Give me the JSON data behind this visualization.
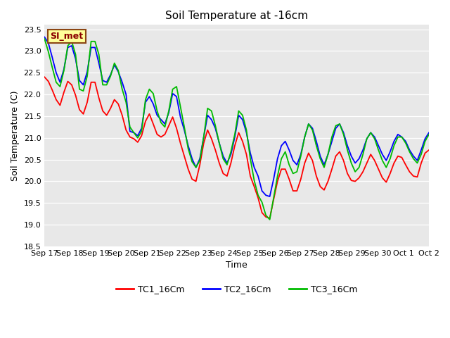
{
  "title": "Soil Temperature at -16cm",
  "xlabel": "Time",
  "ylabel": "Soil Temperature (C)",
  "ylim": [
    18.5,
    23.6
  ],
  "fig_bg_color": "#ffffff",
  "plot_bg_color": "#e8e8e8",
  "annotation_text": "SI_met",
  "annotation_bg": "#ffff99",
  "annotation_border": "#8B4513",
  "annotation_text_color": "#8B0000",
  "line_colors": [
    "#ff0000",
    "#0000ff",
    "#00bb00"
  ],
  "legend_labels": [
    "TC1_16Cm",
    "TC2_16Cm",
    "TC3_16Cm"
  ],
  "x_tick_labels": [
    "Sep 17",
    "Sep 18",
    "Sep 19",
    "Sep 20",
    "Sep 21",
    "Sep 22",
    "Sep 23",
    "Sep 24",
    "Sep 25",
    "Sep 26",
    "Sep 27",
    "Sep 28",
    "Sep 29",
    "Sep 30",
    "Oct 1",
    "Oct 2"
  ],
  "yticks": [
    18.5,
    19.0,
    19.5,
    20.0,
    20.5,
    21.0,
    21.5,
    22.0,
    22.5,
    23.0,
    23.5
  ],
  "tc1_values": [
    22.4,
    22.3,
    22.1,
    21.88,
    21.75,
    22.05,
    22.3,
    22.22,
    21.98,
    21.65,
    21.55,
    21.82,
    22.28,
    22.28,
    21.92,
    21.62,
    21.52,
    21.68,
    21.88,
    21.78,
    21.52,
    21.18,
    21.02,
    20.98,
    20.9,
    21.05,
    21.38,
    21.55,
    21.32,
    21.08,
    21.02,
    21.08,
    21.28,
    21.48,
    21.22,
    20.88,
    20.58,
    20.28,
    20.05,
    20.0,
    20.38,
    20.88,
    21.18,
    20.98,
    20.72,
    20.42,
    20.18,
    20.12,
    20.42,
    20.82,
    21.12,
    20.92,
    20.62,
    20.12,
    19.88,
    19.62,
    19.28,
    19.18,
    19.15,
    19.58,
    20.0,
    20.28,
    20.28,
    20.05,
    19.78,
    19.78,
    20.05,
    20.42,
    20.65,
    20.48,
    20.12,
    19.88,
    19.8,
    20.0,
    20.28,
    20.58,
    20.68,
    20.48,
    20.18,
    20.02,
    20.0,
    20.08,
    20.22,
    20.42,
    20.62,
    20.48,
    20.28,
    20.08,
    19.98,
    20.18,
    20.42,
    20.58,
    20.55,
    20.38,
    20.22,
    20.12,
    20.1,
    20.42,
    20.65,
    20.72
  ],
  "tc2_values": [
    23.32,
    23.18,
    22.85,
    22.5,
    22.28,
    22.58,
    23.08,
    23.12,
    22.82,
    22.32,
    22.22,
    22.52,
    23.08,
    23.08,
    22.72,
    22.32,
    22.28,
    22.45,
    22.68,
    22.52,
    22.28,
    22.0,
    21.15,
    21.12,
    21.05,
    21.22,
    21.82,
    21.95,
    21.78,
    21.52,
    21.42,
    21.32,
    21.58,
    22.02,
    21.95,
    21.48,
    21.18,
    20.82,
    20.52,
    20.32,
    20.52,
    21.02,
    21.52,
    21.42,
    21.22,
    20.88,
    20.58,
    20.42,
    20.62,
    21.02,
    21.52,
    21.42,
    21.12,
    20.65,
    20.32,
    20.12,
    19.78,
    19.68,
    19.65,
    20.05,
    20.52,
    20.82,
    20.92,
    20.72,
    20.48,
    20.38,
    20.62,
    21.02,
    21.32,
    21.22,
    20.92,
    20.58,
    20.38,
    20.62,
    20.92,
    21.22,
    21.32,
    21.12,
    20.82,
    20.58,
    20.42,
    20.52,
    20.72,
    20.98,
    21.12,
    21.02,
    20.82,
    20.62,
    20.48,
    20.68,
    20.92,
    21.08,
    21.02,
    20.92,
    20.72,
    20.58,
    20.48,
    20.72,
    20.98,
    21.12
  ],
  "tc3_values": [
    23.28,
    22.98,
    22.62,
    22.28,
    22.18,
    22.55,
    23.12,
    23.22,
    22.92,
    22.12,
    22.08,
    22.42,
    23.22,
    23.22,
    22.92,
    22.22,
    22.22,
    22.42,
    22.72,
    22.55,
    22.12,
    21.82,
    21.25,
    21.12,
    21.0,
    21.15,
    21.88,
    22.12,
    22.02,
    21.62,
    21.35,
    21.25,
    21.62,
    22.12,
    22.18,
    21.72,
    21.25,
    20.75,
    20.45,
    20.32,
    20.48,
    21.02,
    21.68,
    21.62,
    21.28,
    20.88,
    20.52,
    20.38,
    20.68,
    21.08,
    21.62,
    21.52,
    21.18,
    20.52,
    20.02,
    19.68,
    19.52,
    19.22,
    19.12,
    19.62,
    20.12,
    20.52,
    20.68,
    20.38,
    20.18,
    20.22,
    20.58,
    21.02,
    21.32,
    21.18,
    20.82,
    20.52,
    20.32,
    20.62,
    21.02,
    21.28,
    21.32,
    21.08,
    20.72,
    20.42,
    20.22,
    20.32,
    20.62,
    20.98,
    21.12,
    20.98,
    20.72,
    20.48,
    20.32,
    20.52,
    20.82,
    21.02,
    21.02,
    20.88,
    20.68,
    20.52,
    20.42,
    20.62,
    20.92,
    21.08
  ]
}
